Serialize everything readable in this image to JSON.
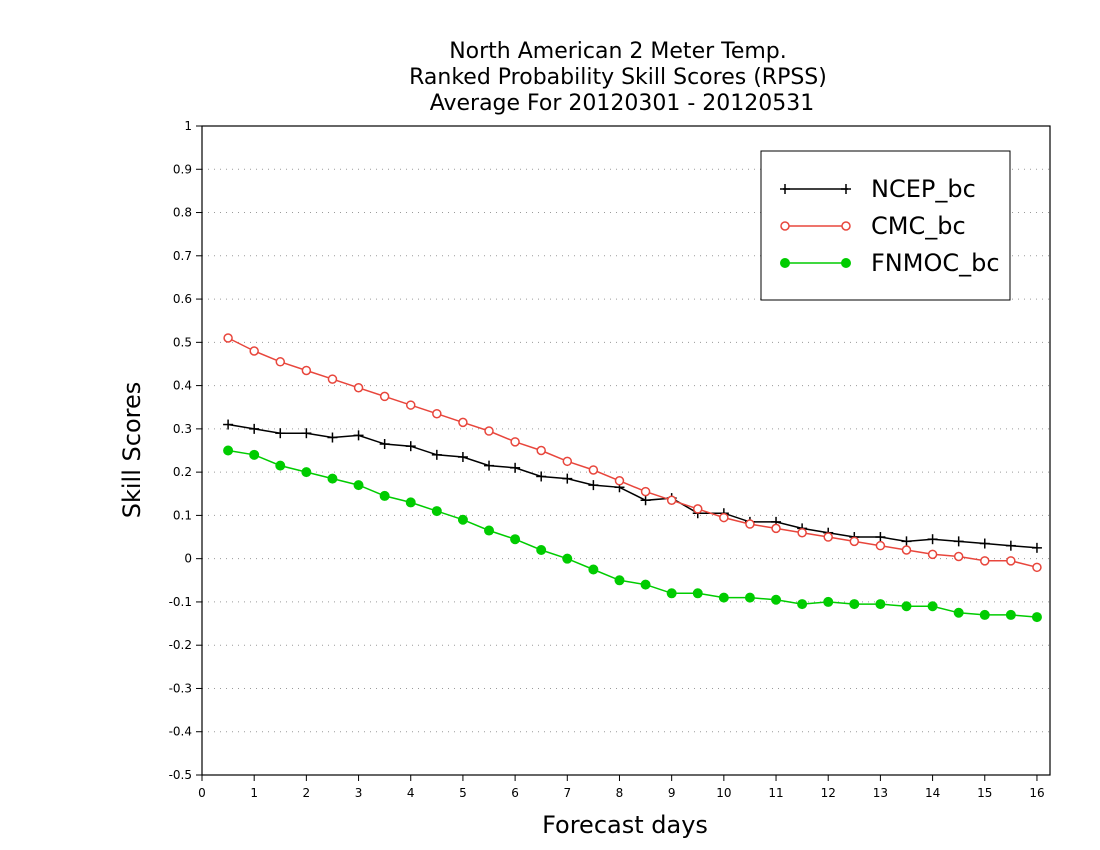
{
  "chart_data": {
    "type": "line",
    "title": [
      "North American 2 Meter Temp.",
      "Ranked Probability Skill Scores (RPSS)",
      "Average For 20120301 - 20120531"
    ],
    "xlabel": "Forecast days",
    "ylabel": "Skill Scores",
    "xlim": [
      0,
      16.25
    ],
    "ylim": [
      -0.5,
      1
    ],
    "x_ticks": [
      "0",
      "1",
      "2",
      "3",
      "4",
      "5",
      "6",
      "7",
      "8",
      "9",
      "10",
      "11",
      "12",
      "13",
      "14",
      "15",
      "16"
    ],
    "y_ticks": [
      "1",
      "0.9",
      "0.8",
      "0.7",
      "0.6",
      "0.5",
      "0.4",
      "0.3",
      "0.2",
      "0.1",
      "0",
      "-0.1",
      "-0.2",
      "-0.3",
      "-0.4",
      "-0.5"
    ],
    "grid": "horizontal dotted",
    "legend_position": "top-right",
    "x": [
      0.5,
      1,
      1.5,
      2,
      2.5,
      3,
      3.5,
      4,
      4.5,
      5,
      5.5,
      6,
      6.5,
      7,
      7.5,
      8,
      8.5,
      9,
      9.5,
      10,
      10.5,
      11,
      11.5,
      12,
      12.5,
      13,
      13.5,
      14,
      14.5,
      15,
      15.5,
      16
    ],
    "series": [
      {
        "name": "NCEP_bc",
        "color": "#000000",
        "marker": "plus",
        "values": [
          0.31,
          0.3,
          0.29,
          0.29,
          0.28,
          0.285,
          0.265,
          0.26,
          0.24,
          0.235,
          0.215,
          0.21,
          0.19,
          0.185,
          0.17,
          0.165,
          0.135,
          0.14,
          0.105,
          0.105,
          0.085,
          0.085,
          0.07,
          0.06,
          0.05,
          0.05,
          0.04,
          0.045,
          0.04,
          0.035,
          0.03,
          0.025
        ]
      },
      {
        "name": "CMC_bc",
        "color": "#e8463c",
        "marker": "open-circle",
        "values": [
          0.51,
          0.48,
          0.455,
          0.435,
          0.415,
          0.395,
          0.375,
          0.355,
          0.335,
          0.315,
          0.295,
          0.27,
          0.25,
          0.225,
          0.205,
          0.18,
          0.155,
          0.135,
          0.115,
          0.095,
          0.08,
          0.07,
          0.06,
          0.05,
          0.04,
          0.03,
          0.02,
          0.01,
          0.005,
          -0.005,
          -0.005,
          -0.02
        ]
      },
      {
        "name": "FNMOC_bc",
        "color": "#00cc00",
        "marker": "filled-circle",
        "values": [
          0.25,
          0.24,
          0.215,
          0.2,
          0.185,
          0.17,
          0.145,
          0.13,
          0.11,
          0.09,
          0.065,
          0.045,
          0.02,
          0.0,
          -0.025,
          -0.05,
          -0.06,
          -0.08,
          -0.08,
          -0.09,
          -0.09,
          -0.095,
          -0.105,
          -0.1,
          -0.105,
          -0.105,
          -0.11,
          -0.11,
          -0.125,
          -0.13,
          -0.13,
          -0.135
        ]
      }
    ]
  }
}
